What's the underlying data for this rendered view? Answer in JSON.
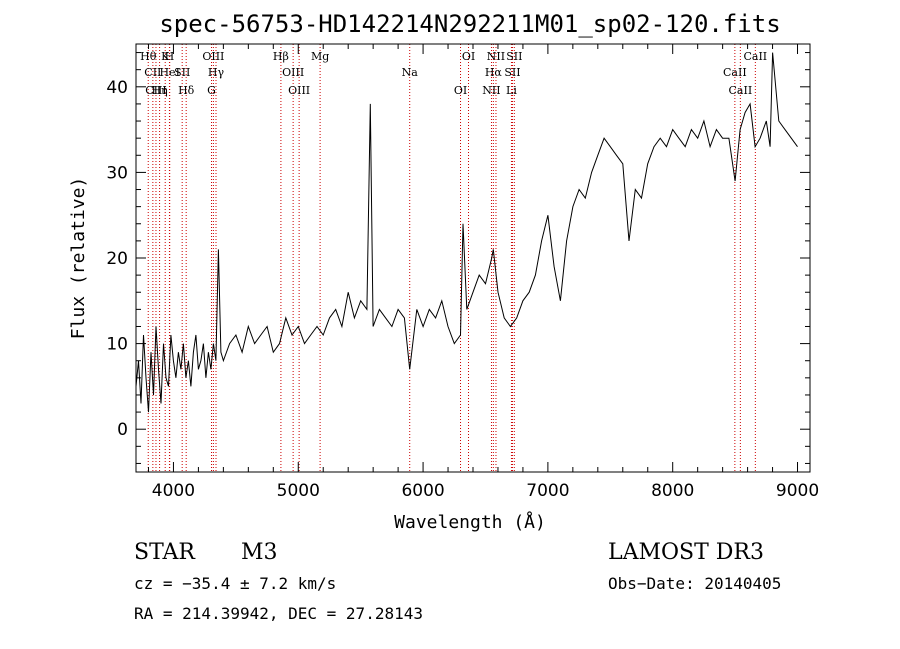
{
  "chart_data": {
    "type": "line",
    "title": "spec-56753-HD142214N292211M01_sp02-120.fits",
    "xlabel": "Wavelength (Å)",
    "ylabel": "Flux (relative)",
    "xlim": [
      3700,
      9100
    ],
    "ylim": [
      -5,
      45
    ],
    "xticks": [
      4000,
      5000,
      6000,
      7000,
      8000,
      9000
    ],
    "yticks": [
      0,
      10,
      20,
      30,
      40
    ],
    "xtick_labels": [
      "4000",
      "5000",
      "6000",
      "7000",
      "8000",
      "9000"
    ],
    "ytick_labels": [
      "0",
      "10",
      "20",
      "30",
      "40"
    ],
    "line_markers": [
      {
        "label": "Hθ",
        "wavelength": 3798
      },
      {
        "label": "CII",
        "wavelength": 3835
      },
      {
        "label": "CIII",
        "wavelength": 3860
      },
      {
        "label": "K",
        "wavelength": 3934
      },
      {
        "label": "HeI",
        "wavelength": 3970
      },
      {
        "label": "Hη",
        "wavelength": 3889
      },
      {
        "label": "H",
        "wavelength": 3968
      },
      {
        "label": "SII",
        "wavelength": 4070
      },
      {
        "label": "Hδ",
        "wavelength": 4102
      },
      {
        "label": "OIII",
        "wavelength": 4320
      },
      {
        "label": "Hγ",
        "wavelength": 4341
      },
      {
        "label": "G",
        "wavelength": 4305
      },
      {
        "label": "Hβ",
        "wavelength": 4861
      },
      {
        "label": "OIII",
        "wavelength": 4959
      },
      {
        "label": "OIII",
        "wavelength": 5007
      },
      {
        "label": "Mg",
        "wavelength": 5175
      },
      {
        "label": "Na",
        "wavelength": 5893
      },
      {
        "label": "OI",
        "wavelength": 6300
      },
      {
        "label": "OI",
        "wavelength": 6364
      },
      {
        "label": "Hα",
        "wavelength": 6563
      },
      {
        "label": "NII",
        "wavelength": 6548
      },
      {
        "label": "NII",
        "wavelength": 6584
      },
      {
        "label": "SII",
        "wavelength": 6716
      },
      {
        "label": "Li",
        "wavelength": 6708
      },
      {
        "label": "SII",
        "wavelength": 6731
      },
      {
        "label": "CaII",
        "wavelength": 8498
      },
      {
        "label": "CaII",
        "wavelength": 8542
      },
      {
        "label": "CaII",
        "wavelength": 8662
      }
    ],
    "series": [
      {
        "name": "flux",
        "x": [
          3700,
          3720,
          3740,
          3760,
          3780,
          3800,
          3820,
          3840,
          3860,
          3880,
          3900,
          3920,
          3940,
          3960,
          3980,
          4000,
          4020,
          4040,
          4060,
          4080,
          4100,
          4120,
          4140,
          4160,
          4180,
          4200,
          4220,
          4240,
          4260,
          4280,
          4300,
          4320,
          4340,
          4360,
          4380,
          4400,
          4450,
          4500,
          4550,
          4600,
          4650,
          4700,
          4750,
          4800,
          4850,
          4900,
          4950,
          5000,
          5050,
          5100,
          5150,
          5200,
          5250,
          5300,
          5350,
          5400,
          5450,
          5500,
          5550,
          5577,
          5600,
          5650,
          5700,
          5750,
          5800,
          5850,
          5893,
          5950,
          6000,
          6050,
          6100,
          6150,
          6200,
          6250,
          6300,
          6320,
          6350,
          6400,
          6450,
          6500,
          6550,
          6563,
          6600,
          6650,
          6700,
          6750,
          6800,
          6850,
          6900,
          6950,
          7000,
          7050,
          7100,
          7150,
          7200,
          7250,
          7300,
          7350,
          7400,
          7450,
          7500,
          7550,
          7600,
          7650,
          7700,
          7750,
          7800,
          7850,
          7900,
          7950,
          8000,
          8050,
          8100,
          8150,
          8200,
          8250,
          8300,
          8350,
          8400,
          8450,
          8500,
          8540,
          8580,
          8620,
          8660,
          8700,
          8750,
          8780,
          8800,
          8850,
          8900,
          8950,
          9000
        ],
        "values": [
          5,
          8,
          3,
          11,
          6,
          2,
          9,
          4,
          12,
          7,
          3,
          10,
          6,
          5,
          11,
          8,
          6,
          9,
          7,
          10,
          6,
          8,
          5,
          9,
          11,
          7,
          8,
          10,
          6,
          9,
          7,
          10,
          8,
          21,
          9,
          8,
          10,
          11,
          9,
          12,
          10,
          11,
          12,
          9,
          10,
          13,
          11,
          12,
          10,
          11,
          12,
          11,
          13,
          14,
          12,
          16,
          13,
          15,
          14,
          38,
          12,
          14,
          13,
          12,
          14,
          13,
          7,
          14,
          12,
          14,
          13,
          15,
          12,
          10,
          11,
          24,
          14,
          16,
          18,
          17,
          20,
          21,
          16,
          13,
          12,
          13,
          15,
          16,
          18,
          22,
          25,
          19,
          15,
          22,
          26,
          28,
          27,
          30,
          32,
          34,
          33,
          32,
          31,
          22,
          28,
          27,
          31,
          33,
          34,
          33,
          35,
          34,
          33,
          35,
          34,
          36,
          33,
          35,
          34,
          34,
          29,
          35,
          37,
          38,
          33,
          34,
          36,
          33,
          44,
          36,
          35,
          34,
          33
        ]
      }
    ]
  },
  "info": {
    "object_class": "STAR",
    "subclass": "M3",
    "survey": "LAMOST DR3",
    "cz": "cz = −35.4 ± 7.2 km/s",
    "obs_date": "Obs−Date: 20140405",
    "coords": "RA = 214.39942, DEC =  27.28143"
  },
  "colors": {
    "axis": "#000000",
    "marker": "#cc0000",
    "spectrum": "#000000"
  }
}
